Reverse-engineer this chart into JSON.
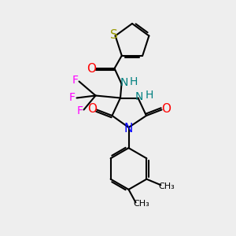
{
  "bg_color": "#eeeeee",
  "bond_color": "#000000",
  "bond_width": 1.5,
  "atoms": {
    "S": {
      "color": "#999900"
    },
    "O": {
      "color": "#ff0000"
    },
    "N_blue": {
      "color": "#0000ff"
    },
    "N_teal": {
      "color": "#008080"
    },
    "F": {
      "color": "#ff00ff"
    }
  },
  "fig_size": [
    3.0,
    3.0
  ],
  "dpi": 100,
  "xlim": [
    0,
    10
  ],
  "ylim": [
    0,
    10
  ]
}
